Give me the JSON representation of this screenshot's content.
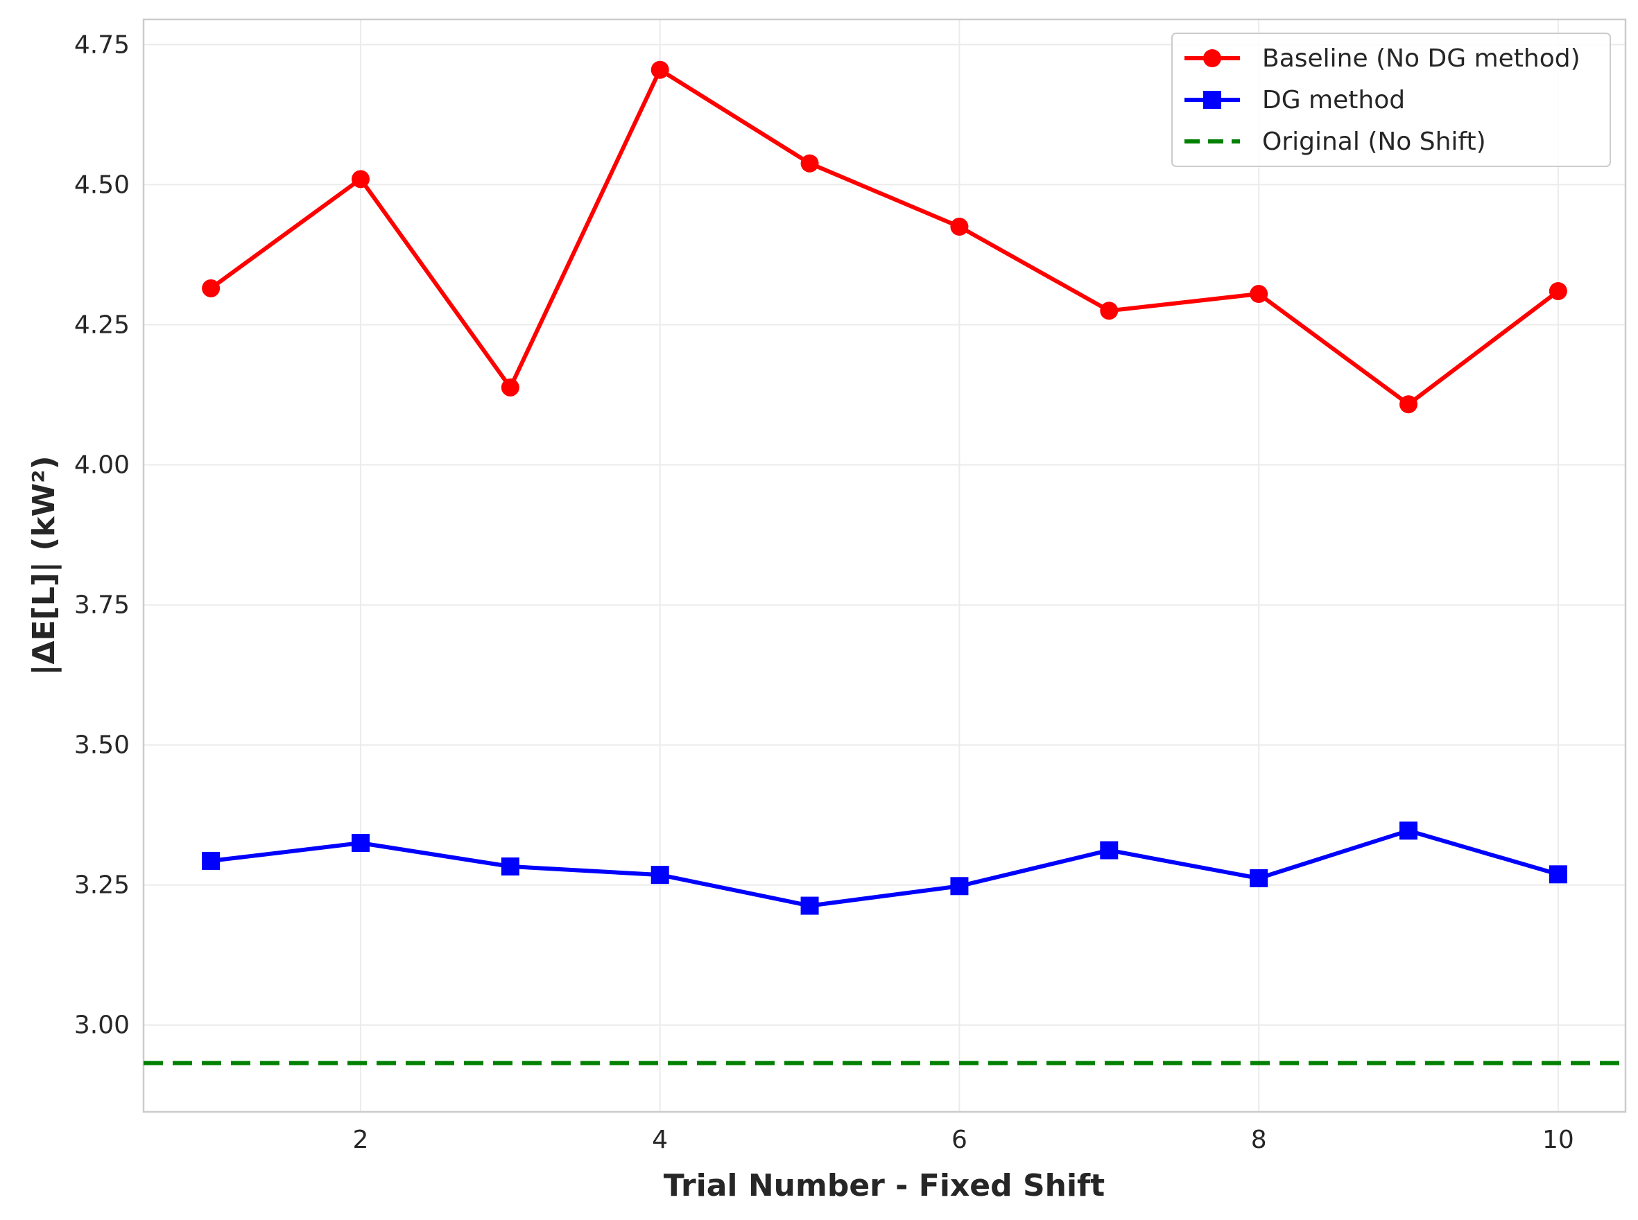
{
  "chart_data": {
    "type": "line",
    "title": "",
    "xlabel": "Trial Number - Fixed Shift",
    "ylabel": "|ΔE[L]| (kW²)",
    "x": [
      1,
      2,
      3,
      4,
      5,
      6,
      7,
      8,
      9,
      10
    ],
    "xlim": [
      0.55,
      10.45
    ],
    "ylim": [
      2.845,
      4.795
    ],
    "x_ticks": [
      2,
      4,
      6,
      8,
      10
    ],
    "x_tick_labels": [
      "2",
      "4",
      "6",
      "8",
      "10"
    ],
    "y_ticks": [
      3.0,
      3.25,
      3.5,
      3.75,
      4.0,
      4.25,
      4.5,
      4.75
    ],
    "y_tick_labels": [
      "3.00",
      "3.25",
      "3.50",
      "3.75",
      "4.00",
      "4.25",
      "4.50",
      "4.75"
    ],
    "grid": true,
    "legend_position": "upper right",
    "series": [
      {
        "name": "Baseline (No DG method)",
        "color": "#ff0000",
        "marker": "circle",
        "line": "solid",
        "values": [
          4.315,
          4.51,
          4.138,
          4.705,
          4.538,
          4.425,
          4.275,
          4.305,
          4.108,
          4.31
        ]
      },
      {
        "name": "DG method",
        "color": "#0000ff",
        "marker": "square",
        "line": "solid",
        "values": [
          3.293,
          3.325,
          3.283,
          3.268,
          3.213,
          3.248,
          3.312,
          3.262,
          3.347,
          3.269
        ]
      }
    ],
    "reference_lines": [
      {
        "name": "Original (No Shift)",
        "color": "#008000",
        "line": "dashed",
        "y": 2.932
      }
    ]
  }
}
